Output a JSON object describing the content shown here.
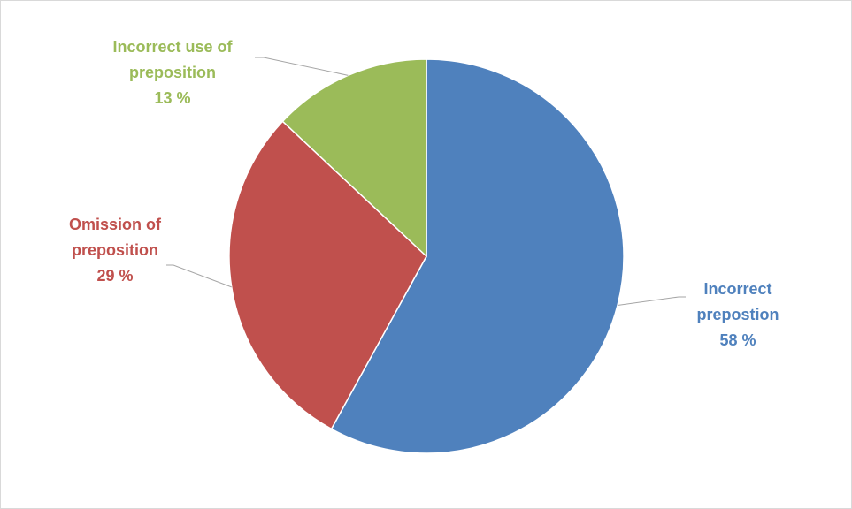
{
  "chart_data": {
    "type": "pie",
    "title": "",
    "slices": [
      {
        "label_lines": [
          "Incorrect",
          "prepostion"
        ],
        "value_text": "58 %",
        "value": 58,
        "color": "#4f81bd"
      },
      {
        "label_lines": [
          "Omission of",
          "preposition"
        ],
        "value_text": "29 %",
        "value": 29,
        "color": "#c0504d"
      },
      {
        "label_lines": [
          "Incorrect use of",
          "preposition"
        ],
        "value_text": "13 %",
        "value": 13,
        "color": "#9bbb59"
      }
    ],
    "leader_line_color": "#a6a6a6"
  }
}
